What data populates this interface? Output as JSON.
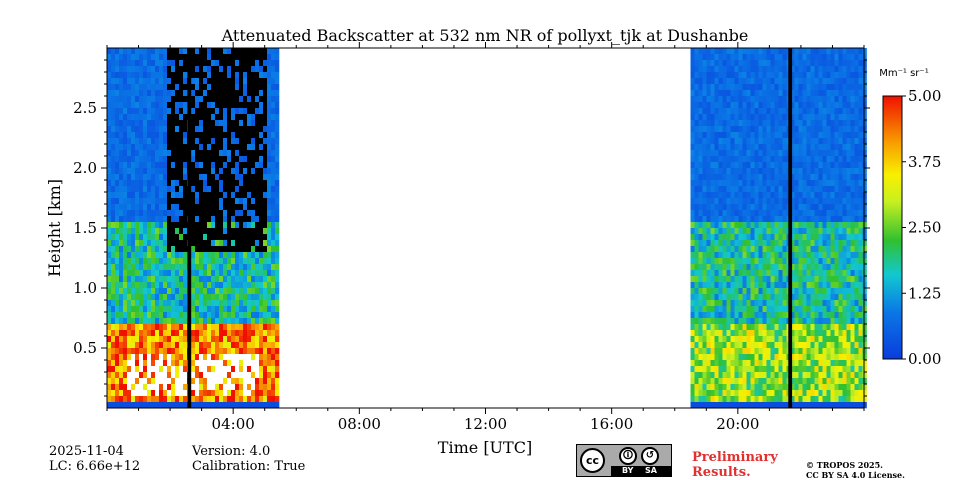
{
  "chart_data": {
    "type": "heatmap",
    "title": "Attenuated Backscatter at 532 nm NR of pollyxt_tjk at Dushanbe",
    "xlabel": "Time [UTC]",
    "ylabel": "Height [km]",
    "xlim_hours": [
      0,
      24
    ],
    "ylim_km": [
      0,
      3.0
    ],
    "x_ticks": [
      {
        "hour": 4,
        "label": "04:00"
      },
      {
        "hour": 8,
        "label": "08:00"
      },
      {
        "hour": 12,
        "label": "12:00"
      },
      {
        "hour": 16,
        "label": "16:00"
      },
      {
        "hour": 20,
        "label": "20:00"
      }
    ],
    "y_ticks": [
      {
        "km": 0.5,
        "label": "0.5"
      },
      {
        "km": 1.0,
        "label": "1.0"
      },
      {
        "km": 1.5,
        "label": "1.5"
      },
      {
        "km": 2.0,
        "label": "2.0"
      },
      {
        "km": 2.5,
        "label": "2.5"
      }
    ],
    "colorbar": {
      "unit": "Mm⁻¹ sr⁻¹",
      "min": 0.0,
      "max": 5.0,
      "ticks": [
        {
          "value": 0.0,
          "label": "0.00"
        },
        {
          "value": 1.25,
          "label": "1.25"
        },
        {
          "value": 2.5,
          "label": "2.50"
        },
        {
          "value": 3.75,
          "label": "3.75"
        },
        {
          "value": 5.0,
          "label": "5.00"
        }
      ]
    },
    "data_segments_hours": [
      [
        0.0,
        5.4
      ],
      [
        18.5,
        24.0
      ]
    ],
    "description_layers": [
      {
        "name": "boundary_layer_aerosol",
        "top_km": 0.75,
        "typical_value": 3.5
      },
      {
        "name": "clear_free_troposphere",
        "typical_value": 0.3
      }
    ]
  },
  "footer": {
    "date": "2025-11-04",
    "lc": "LC: 6.66e+12",
    "version": "Version: 4.0",
    "calibration": "Calibration: True",
    "preliminary_line1": "Preliminary",
    "preliminary_line2": "Results.",
    "copyright_line1": "© TROPOS 2025.",
    "copyright_line2": "CC BY SA 4.0 License.",
    "cc_label": "cc",
    "cc_by": "BY",
    "cc_sa": "SA"
  },
  "colors": {
    "low": "#0a3cdc",
    "mid": "#30c030",
    "high": "#e83010",
    "black": "#000000"
  }
}
